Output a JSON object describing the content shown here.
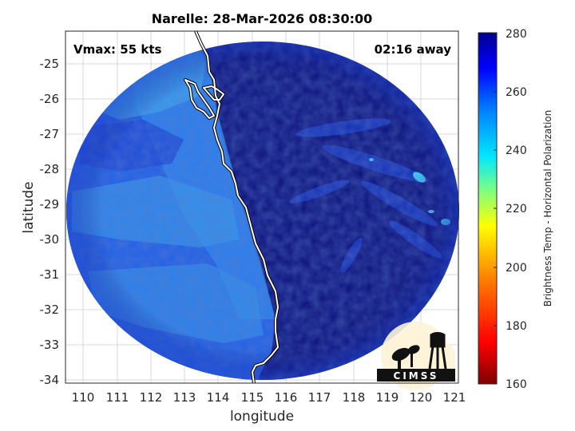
{
  "title": "Narelle: 28-Mar-2026 08:30:00",
  "vmax_text": "Vmax: 55 kts",
  "eta_text": "02:16 away",
  "xlabel": "longitude",
  "ylabel": "latitude",
  "x_ticks": [
    "110",
    "111",
    "112",
    "113",
    "114",
    "115",
    "116",
    "117",
    "118",
    "119",
    "120",
    "121"
  ],
  "y_ticks": [
    "-25",
    "-26",
    "-27",
    "-28",
    "-29",
    "-30",
    "-31",
    "-32",
    "-33",
    "-34"
  ],
  "colorbar": {
    "label": "Brightness Temp - Horizontal Polarization",
    "ticks": [
      "280",
      "260",
      "240",
      "220",
      "200",
      "180",
      "160"
    ],
    "range": [
      160,
      280
    ],
    "colormap": [
      "#7f0000",
      "#ff0000",
      "#ff7f00",
      "#ffff00",
      "#7fff7f",
      "#00ffff",
      "#007fff",
      "#0000ff",
      "#00008f"
    ]
  },
  "logo_text": "CIMSS",
  "colors": {
    "deep": "#0b0f7a",
    "ocean_west": "#1f5fe6",
    "light_band": "#2f8ff0",
    "cyan_band": "#38b8f2",
    "coast": "#ffffff"
  }
}
